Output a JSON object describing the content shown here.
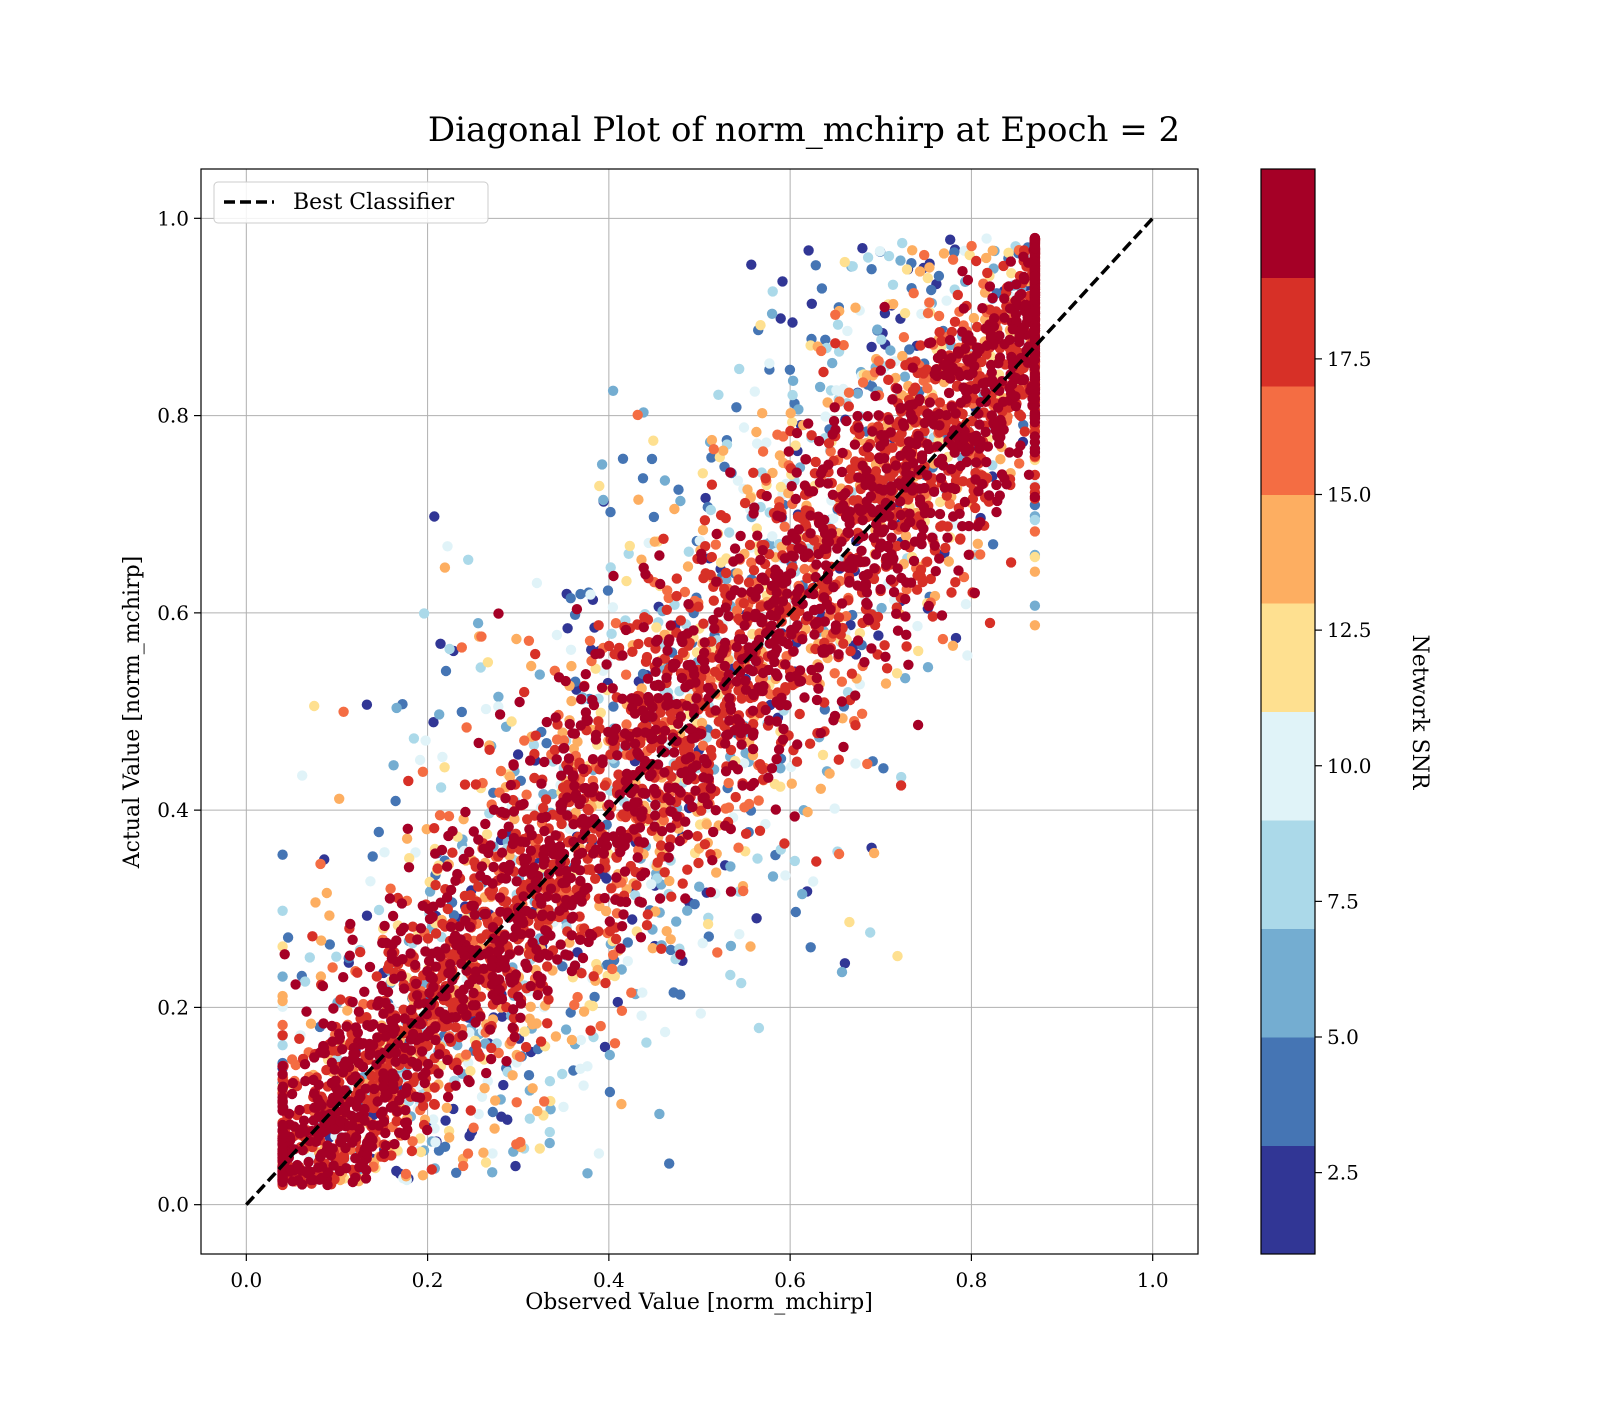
{
  "chart_data": {
    "type": "scatter",
    "title": "Diagonal Plot of norm_mchirp at Epoch = 2",
    "xlabel": "Observed Value [norm_mchirp]",
    "ylabel": "Actual Value [norm_mchirp]",
    "xlim": [
      -0.05,
      1.05
    ],
    "ylim": [
      -0.05,
      1.05
    ],
    "xticks": [
      "0.0",
      "0.2",
      "0.4",
      "0.6",
      "0.8",
      "1.0"
    ],
    "yticks": [
      "0.0",
      "0.2",
      "0.4",
      "0.6",
      "0.8",
      "1.0"
    ],
    "grid": true,
    "legend": {
      "position": "top-left",
      "entries": [
        "Best Classifier"
      ]
    },
    "reference_line": {
      "name": "Best Classifier",
      "style": "dashed",
      "color": "#000000",
      "x": [
        0.0,
        1.0
      ],
      "y": [
        0.0,
        1.0
      ]
    },
    "colorbar": {
      "label": "Network SNR",
      "range": [
        1.0,
        21.0
      ],
      "ticks": [
        "2.5",
        "5.0",
        "7.5",
        "10.0",
        "12.5",
        "15.0",
        "17.5"
      ],
      "colors": [
        "#313695",
        "#4575b4",
        "#74add1",
        "#abd9e9",
        "#e0f3f8",
        "#fee090",
        "#fdae61",
        "#f46d43",
        "#d73027",
        "#a50026"
      ]
    },
    "series": [
      {
        "description_of_distribution": "dense band around the diagonal; high SNR near the diagonal, low SNR points scattered above the diagonal at mid x and below the diagonal at mid x",
        "x_range": [
          0.04,
          0.87
        ],
        "y_range": [
          0.0,
          1.0
        ]
      }
    ]
  }
}
